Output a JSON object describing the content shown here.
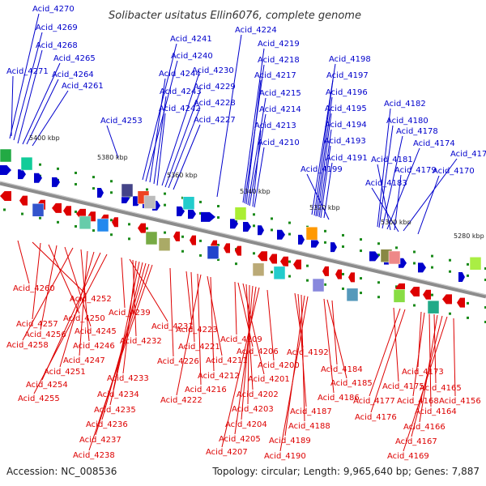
{
  "title": "Solibacter usitatus Ellin6076, complete genome",
  "footer": {
    "accession": "Accession: NC_008536",
    "summary": "Topology: circular; Length: 9,965,640 bp; Genes: 7,887"
  },
  "colors": {
    "top_gene": "#0000cc",
    "bottom_gene": "#dd0000",
    "backbone": "#888888",
    "tick": "#1a8a1a"
  },
  "kbp_ticks": [
    "5400 kbp",
    "5380 kbp",
    "5360 kbp",
    "5340 kbp",
    "5320 kbp",
    "5300 kbp",
    "5280 kbp"
  ],
  "top_labels": [
    "Acid_4270",
    "Acid_4269",
    "Acid_4268",
    "Acid_4265",
    "Acid_4271",
    "Acid_4264",
    "Acid_4261",
    "Acid_4253",
    "Acid_4241",
    "Acid_4240",
    "Acid_4244",
    "Acid_4243",
    "Acid_4242",
    "Acid_4230",
    "Acid_4229",
    "Acid_4228",
    "Acid_4227",
    "Acid_4224",
    "Acid_4219",
    "Acid_4218",
    "Acid_4217",
    "Acid_4215",
    "Acid_4214",
    "Acid_4213",
    "Acid_4210",
    "Acid_4198",
    "Acid_4197",
    "Acid_4196",
    "Acid_4195",
    "Acid_4194",
    "Acid_4193",
    "Acid_4191",
    "Acid_4199",
    "Acid_4182",
    "Acid_4180",
    "Acid_4178",
    "Acid_4174",
    "Acid_4171",
    "Acid_4181",
    "Acid_4179",
    "Acid_4183",
    "Acid_4170"
  ],
  "bottom_labels": [
    "Acid_4260",
    "Acid_4252",
    "Acid_4257",
    "Acid_4250",
    "Acid_4256",
    "Acid_4245",
    "Acid_4258",
    "Acid_4246",
    "Acid_4247",
    "Acid_4251",
    "Acid_4254",
    "Acid_4255",
    "Acid_4239",
    "Acid_4231",
    "Acid_4232",
    "Acid_4233",
    "Acid_4234",
    "Acid_4235",
    "Acid_4236",
    "Acid_4237",
    "Acid_4238",
    "Acid_4226",
    "Acid_4223",
    "Acid_4221",
    "Acid_4216",
    "Acid_4222",
    "Acid_4211",
    "Acid_4212",
    "Acid_4209",
    "Acid_4206",
    "Acid_4201",
    "Acid_4202",
    "Acid_4203",
    "Acid_4204",
    "Acid_4205",
    "Acid_4207",
    "Acid_4200",
    "Acid_4192",
    "Acid_4187",
    "Acid_4188",
    "Acid_4189",
    "Acid_4190",
    "Acid_4186",
    "Acid_4185",
    "Acid_4184",
    "Acid_4175",
    "Acid_4177",
    "Acid_4176",
    "Acid_4173",
    "Acid_4168",
    "Acid_4164",
    "Acid_4165",
    "Acid_4166",
    "Acid_4167",
    "Acid_4169",
    "Acid_4156"
  ]
}
